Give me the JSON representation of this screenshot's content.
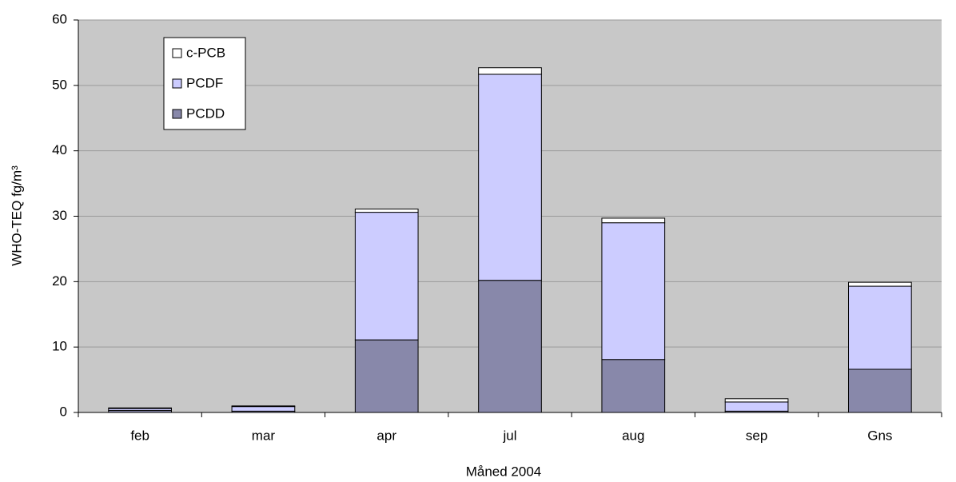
{
  "chart_data": {
    "type": "stacked_bar",
    "xlabel": "Måned 2004",
    "ylabel": "WHO-TEQ fg/m³",
    "categories": [
      "feb",
      "mar",
      "apr",
      "jul",
      "aug",
      "sep",
      "Gns"
    ],
    "series": [
      {
        "name": "PCDD",
        "color": "#8888aa",
        "values": [
          0.3,
          0.2,
          11.1,
          20.2,
          8.1,
          0.2,
          6.6
        ]
      },
      {
        "name": "PCDF",
        "color": "#ccccff",
        "values": [
          0.3,
          0.7,
          19.5,
          31.5,
          20.9,
          1.4,
          12.7
        ]
      },
      {
        "name": "c-PCB",
        "color": "#ffffff",
        "values": [
          0.1,
          0.1,
          0.5,
          1.0,
          0.7,
          0.5,
          0.6
        ]
      }
    ],
    "ylim": [
      0,
      60
    ],
    "yticks": [
      0,
      10,
      20,
      30,
      40,
      50,
      60
    ],
    "grid": true,
    "legend": "top-left"
  }
}
